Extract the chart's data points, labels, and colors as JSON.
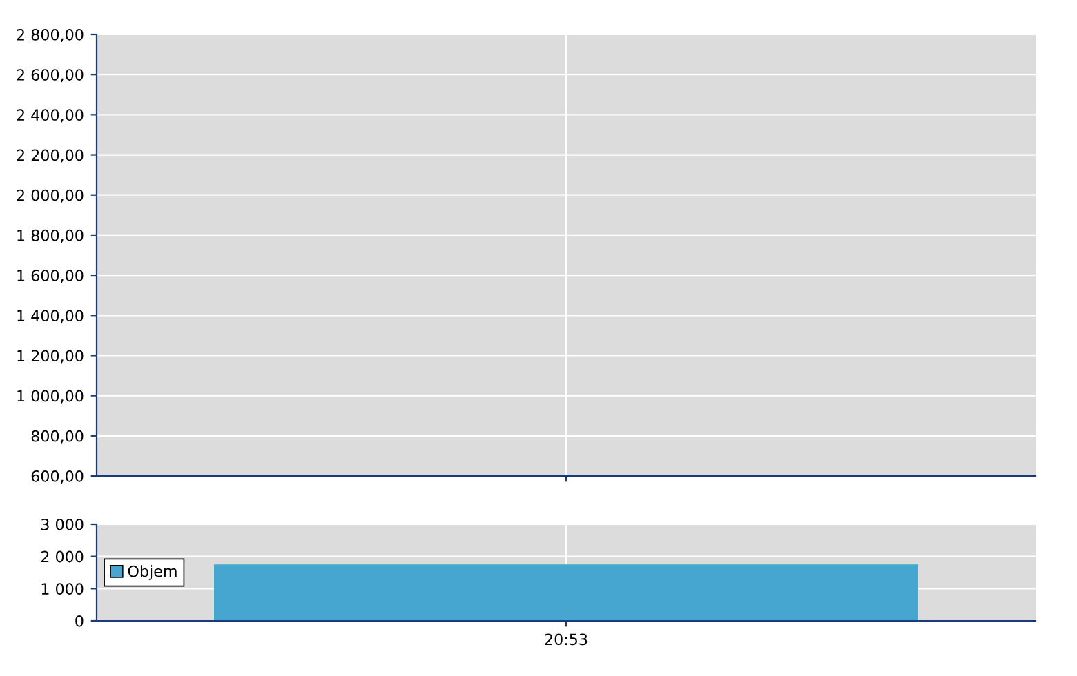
{
  "chart_data": [
    {
      "type": "line",
      "categories": [
        null
      ],
      "series": [
        {
          "color": "#003399",
          "values": [
            null
          ]
        }
      ],
      "ylim": [
        600,
        2800
      ],
      "yticks": [
        {
          "value": 600,
          "label": "600,00"
        },
        {
          "value": 800,
          "label": "800,00"
        },
        {
          "value": 1000,
          "label": "1 000,00"
        },
        {
          "value": 1200,
          "label": "1 200,00"
        },
        {
          "value": 1400,
          "label": "1 400,00"
        },
        {
          "value": 1600,
          "label": "1 600,00"
        },
        {
          "value": 1800,
          "label": "1 800,00"
        },
        {
          "value": 2000,
          "label": "2 000,00"
        },
        {
          "value": 2200,
          "label": "2 200,00"
        },
        {
          "value": 2400,
          "label": "2 400,00"
        },
        {
          "value": 2600,
          "label": "2 600,00"
        },
        {
          "value": 2800,
          "label": "2 800,00"
        }
      ],
      "grid": true,
      "tick_labels": "y"
    },
    {
      "type": "bar",
      "categories": [
        "20:53"
      ],
      "series": [
        {
          "name": "Objem",
          "color": "#46a6cf",
          "values": [
            1750
          ]
        }
      ],
      "ylim": [
        0,
        3000
      ],
      "yticks": [
        0,
        {
          "value": 1000,
          "label": "1 000"
        },
        {
          "value": 2000,
          "label": "2 000"
        },
        {
          "value": 3000,
          "label": "3 000"
        }
      ],
      "grid": true,
      "legend": "left"
    }
  ]
}
